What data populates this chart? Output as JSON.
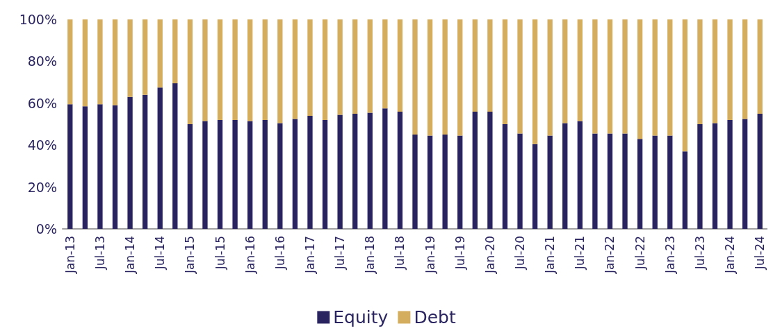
{
  "chart_data": {
    "type": "bar",
    "stacked": true,
    "categories": [
      "Jan-13",
      null,
      "Jul-13",
      null,
      "Jan-14",
      null,
      "Jul-14",
      null,
      "Jan-15",
      null,
      "Jul-15",
      null,
      "Jan-16",
      null,
      "Jul-16",
      null,
      "Jan-17",
      null,
      "Jul-17",
      null,
      "Jan-18",
      null,
      "Jul-18",
      null,
      "Jan-19",
      null,
      "Jul-19",
      null,
      "Jan-20",
      null,
      "Jul-20",
      null,
      "Jan-21",
      null,
      "Jul-21",
      null,
      "Jan-22",
      null,
      "Jul-22",
      null,
      "Jan-23",
      null,
      "Jul-23",
      null,
      "Jan-24",
      null,
      "Jul-24"
    ],
    "series": [
      {
        "name": "Equity",
        "color": "#29245f",
        "values": [
          59.5,
          58.5,
          59.5,
          59,
          63,
          64,
          67.5,
          69.5,
          50,
          51.5,
          52,
          52,
          51.5,
          52,
          50.5,
          52.5,
          54,
          52,
          54.5,
          55,
          55.5,
          57.5,
          56,
          45,
          44.5,
          45,
          44.5,
          56,
          56,
          50,
          45.5,
          40.5,
          44.5,
          50.5,
          51.5,
          45.5,
          45.5,
          45.5,
          43,
          44.5,
          44.5,
          37,
          50,
          50.5,
          52,
          52.5,
          55
        ]
      },
      {
        "name": "Debt",
        "color": "#d4ad5f",
        "values": [
          40.5,
          41.5,
          40.5,
          41,
          37,
          36,
          32.5,
          30.5,
          50,
          48.5,
          48,
          48,
          48.5,
          48,
          49.5,
          47.5,
          46,
          48,
          45.5,
          45,
          44.5,
          42.5,
          44,
          55,
          55.5,
          55,
          55.5,
          44,
          44,
          50,
          54.5,
          59.5,
          55.5,
          49.5,
          48.5,
          54.5,
          54.5,
          54.5,
          57,
          55.5,
          55.5,
          63,
          50,
          49.5,
          48,
          47.5,
          45
        ]
      }
    ],
    "ylim": [
      0,
      100
    ],
    "yticks": [
      {
        "value": 0,
        "label": "0%"
      },
      {
        "value": 20,
        "label": "20%"
      },
      {
        "value": 40,
        "label": "40%"
      },
      {
        "value": 60,
        "label": "60%"
      },
      {
        "value": 80,
        "label": "80%"
      },
      {
        "value": 100,
        "label": "100%"
      }
    ],
    "grid": false,
    "legend": "bottom"
  }
}
